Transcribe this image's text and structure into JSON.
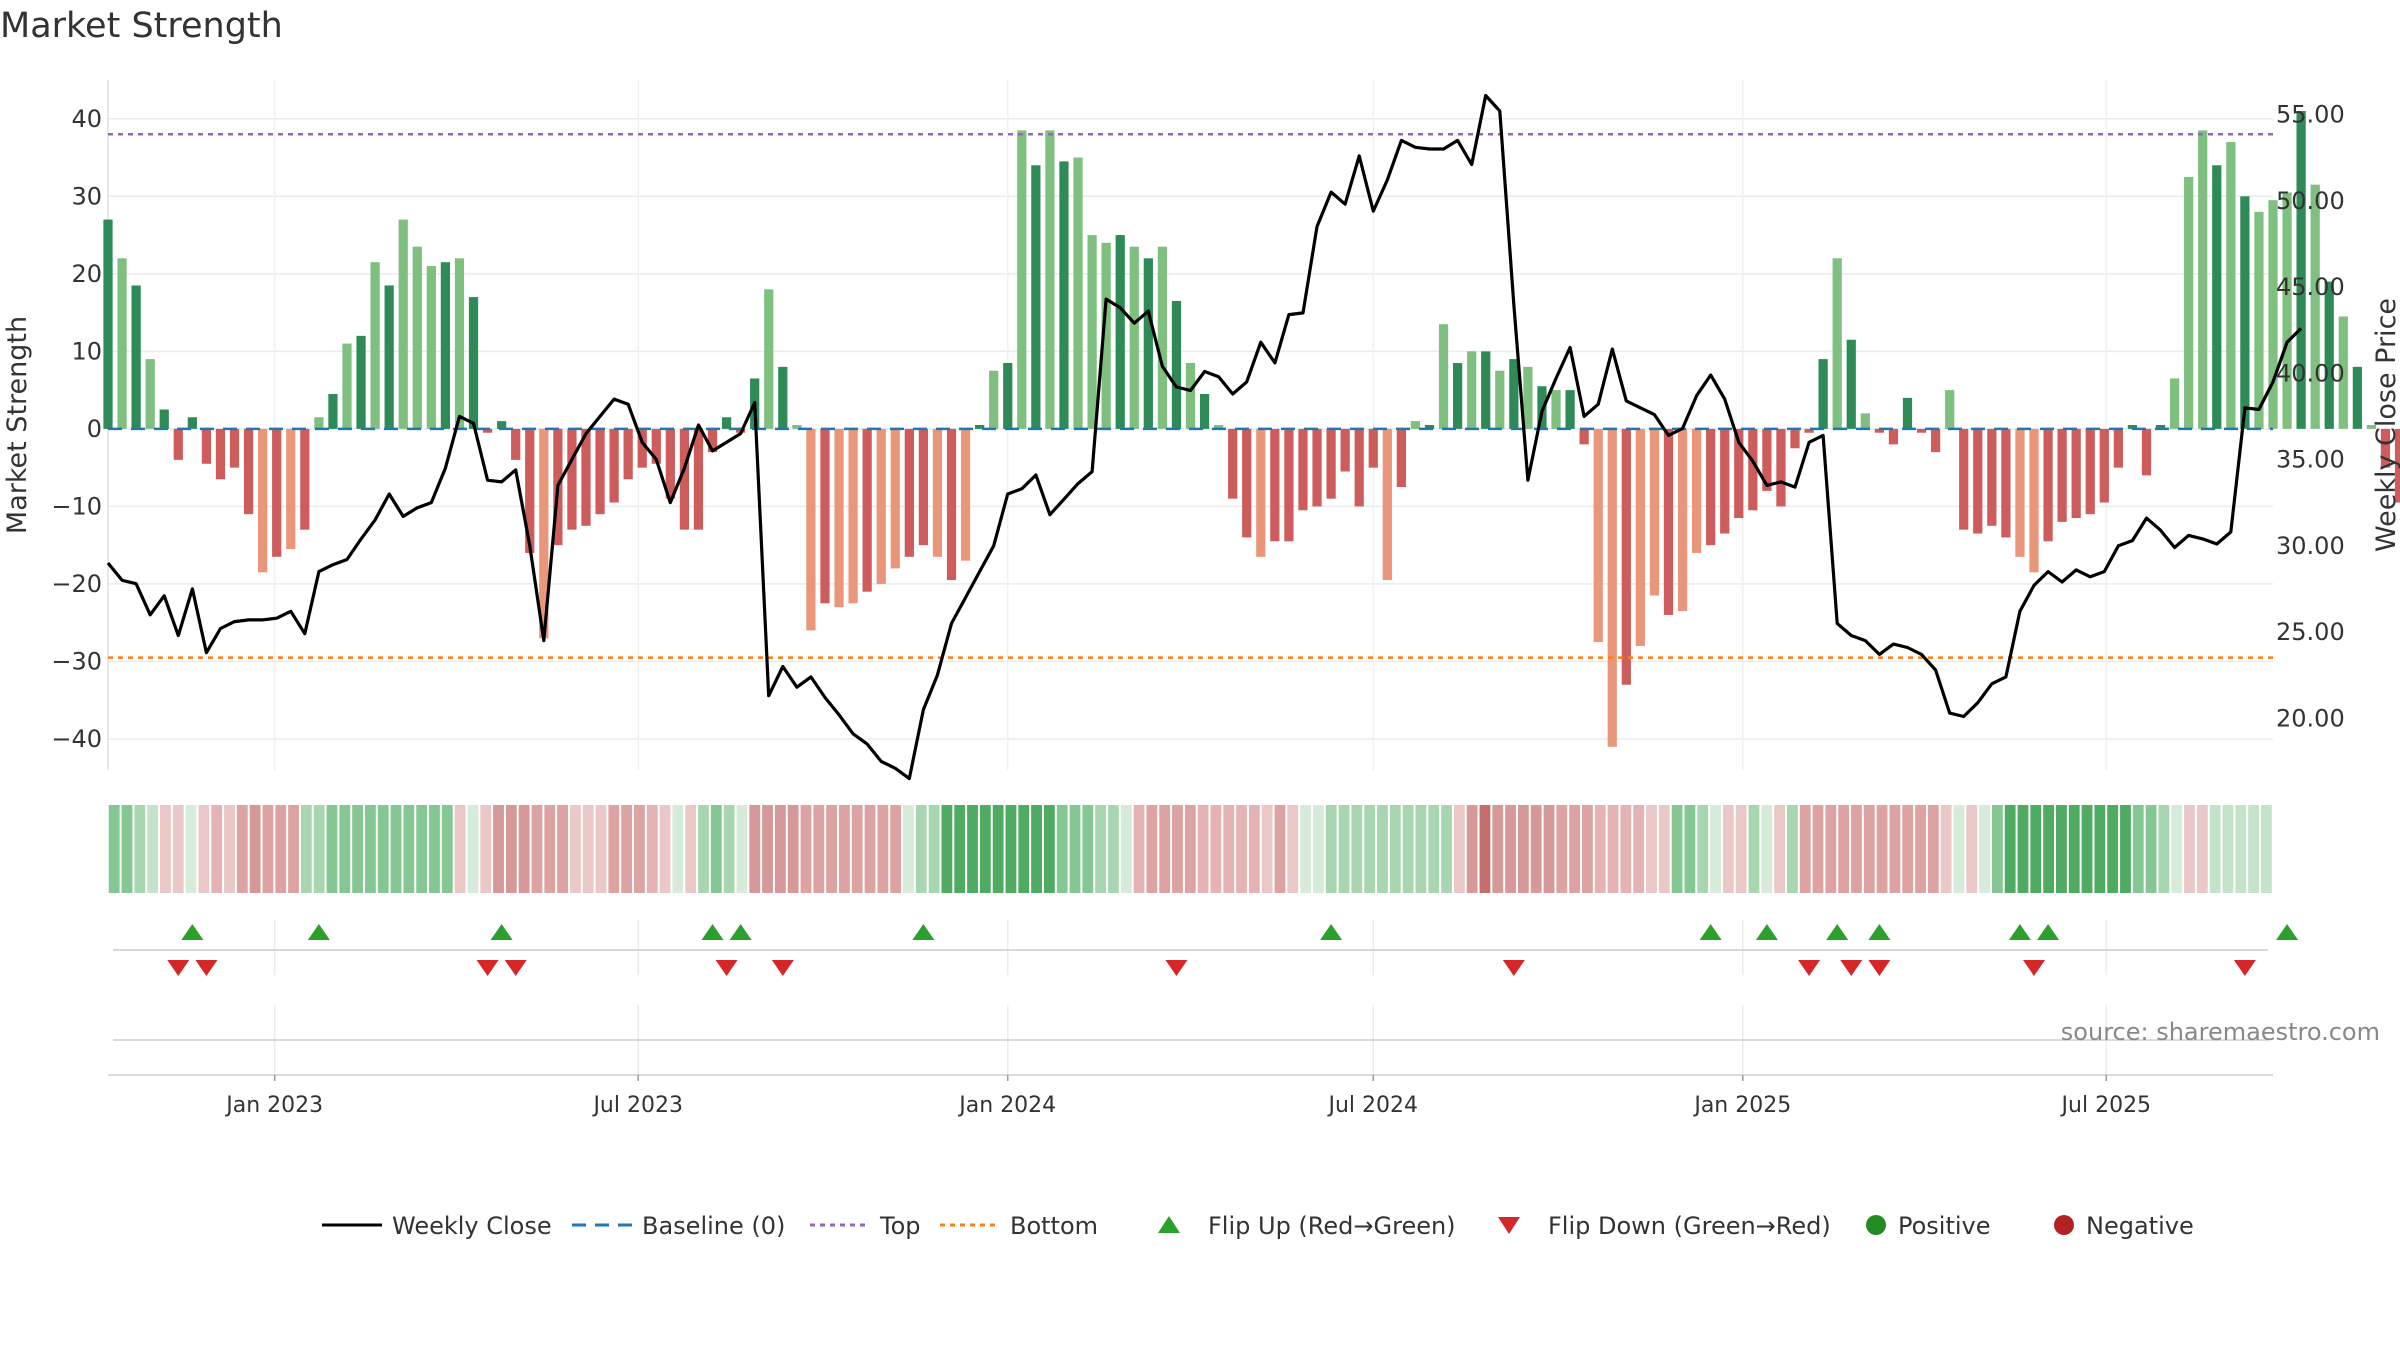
{
  "title": "Market Strength",
  "source": "source: sharemaestro.com",
  "chart_data": {
    "type": "bar",
    "ylabel_left": "Market Strength",
    "ylabel_right": "Weekly Close Price",
    "y_left_range": [
      -44,
      45
    ],
    "y_right_range": [
      17,
      57
    ],
    "y_left_ticks": [
      "40",
      "30",
      "20",
      "10",
      "0",
      "−10",
      "−20",
      "−30",
      "−40"
    ],
    "y_right_ticks": [
      "55.00",
      "50.00",
      "45.00",
      "40.00",
      "35.00",
      "30.00",
      "25.00",
      "20.00"
    ],
    "x_range": [
      "2022-10-10",
      "2025-09-22"
    ],
    "x_ticks": [
      {
        "date": "2023-01-01",
        "label": "Jan 2023"
      },
      {
        "date": "2023-07-01",
        "label": "Jul 2023"
      },
      {
        "date": "2024-01-01",
        "label": "Jan 2024"
      },
      {
        "date": "2024-07-01",
        "label": "Jul 2024"
      },
      {
        "date": "2025-01-01",
        "label": "Jan 2025"
      },
      {
        "date": "2025-07-01",
        "label": "Jul 2025"
      }
    ],
    "top_line": 38,
    "bottom_line": -29.5,
    "baseline": 0,
    "start_date": "2022-10-10",
    "strength": [
      27,
      22,
      18.5,
      9,
      2.5,
      -4,
      1.5,
      -4.5,
      -6.5,
      -5,
      -11,
      -18.5,
      -16.5,
      -15.5,
      -13,
      1.5,
      4.5,
      11,
      12,
      21.5,
      18.5,
      27,
      23.5,
      21,
      21.5,
      22,
      17,
      -0.5,
      1,
      -4,
      -16,
      -27,
      -15,
      -13,
      -12.5,
      -11,
      -9.5,
      -6.5,
      -5,
      -4.5,
      -9,
      -13,
      -13,
      -3,
      1.5,
      -0.5,
      6.5,
      18,
      8,
      0.5,
      -26,
      -22.5,
      -23,
      -22.5,
      -21,
      -20,
      -18,
      -16.5,
      -15,
      -16.5,
      -19.5,
      -17,
      0.5,
      7.5,
      8.5,
      38.5,
      34,
      38.5,
      34.5,
      35,
      25,
      24,
      25,
      23.5,
      22,
      23.5,
      16.5,
      8.5,
      4.5,
      0.5,
      -9,
      -14,
      -16.5,
      -14.5,
      -14.5,
      -10.5,
      -10,
      -9,
      -5.5,
      -10,
      -5,
      -19.5,
      -7.5,
      1,
      0.5,
      13.5,
      8.5,
      10,
      10,
      7.5,
      9,
      8,
      5.5,
      5,
      5,
      -2,
      -27.5,
      -41,
      -33,
      -28,
      -21.5,
      -24,
      -23.5,
      -16,
      -15,
      -13.5,
      -11.5,
      -10.5,
      -8,
      -10,
      -2.5,
      -0.5,
      9,
      22,
      11.5,
      2,
      -0.5,
      -2,
      4,
      -0.5,
      -3,
      5,
      -13,
      -13.5,
      -12.5,
      -14,
      -16.5,
      -18.5,
      -14.5,
      -12,
      -11.5,
      -11,
      -9.5,
      -5,
      0.5,
      -6,
      0.5,
      6.5,
      32.5,
      38.5,
      34,
      37,
      30,
      28,
      29.5,
      30.5,
      41,
      31.5,
      19,
      14.5,
      8,
      0.5,
      -5,
      -9.5,
      3,
      2.5,
      3.5,
      6,
      5.5
    ],
    "weekly_close": [
      29.0,
      28.0,
      27.8,
      26.0,
      27.1,
      24.8,
      27.5,
      23.8,
      25.2,
      25.6,
      25.7,
      25.7,
      25.8,
      26.2,
      24.9,
      28.5,
      28.9,
      29.2,
      30.4,
      31.5,
      33.0,
      31.7,
      32.2,
      32.5,
      34.5,
      37.5,
      37.1,
      33.8,
      33.7,
      34.4,
      30.0,
      24.5,
      33.5,
      35.0,
      36.5,
      37.5,
      38.5,
      38.2,
      36.0,
      35.0,
      32.5,
      34.5,
      37.0,
      35.5,
      36.0,
      36.5,
      38.3,
      21.3,
      23.0,
      21.8,
      22.4,
      21.2,
      20.2,
      19.1,
      18.5,
      17.5,
      17.1,
      16.5,
      20.5,
      22.5,
      25.5,
      27.0,
      28.5,
      30.0,
      33.0,
      33.3,
      34.1,
      31.8,
      32.7,
      33.6,
      34.3,
      44.3,
      43.8,
      42.9,
      43.6,
      40.4,
      39.2,
      39.0,
      40.1,
      39.8,
      38.8,
      39.5,
      41.8,
      40.6,
      43.4,
      43.5,
      48.5,
      50.5,
      49.8,
      52.6,
      49.4,
      51.2,
      53.5,
      53.1,
      53.0,
      53.0,
      53.5,
      52.1,
      56.1,
      55.2,
      44.0,
      33.8,
      37.8,
      39.7,
      41.5,
      37.5,
      38.2,
      41.4,
      38.4,
      38.0,
      37.6,
      36.4,
      36.8,
      38.7,
      39.9,
      38.5,
      36.0,
      34.9,
      33.5,
      33.7,
      33.4,
      36.0,
      36.4,
      25.5,
      24.8,
      24.5,
      23.7,
      24.3,
      24.1,
      23.7,
      22.8,
      20.3,
      20.1,
      20.9,
      22.0,
      22.4,
      26.2,
      27.7,
      28.5,
      27.9,
      28.6,
      28.2,
      28.5,
      30.0,
      30.3,
      31.6,
      30.9,
      29.9,
      30.6,
      30.4,
      30.1,
      30.8,
      38.0,
      37.9,
      39.5,
      41.8,
      42.6
    ],
    "heat_strip": [
      "#85c792",
      "#85c792",
      "#a8d6b1",
      "#c4e3ca",
      "#ebc8c8",
      "#ebc8c8",
      "#d6ebd9",
      "#ebc8c8",
      "#e5b3b3",
      "#ebc8c8",
      "#dda3a3",
      "#d69898",
      "#dda3a3",
      "#dda3a3",
      "#dda3a3",
      "#a8d6b1",
      "#a8d6b1",
      "#85c792",
      "#85c792",
      "#85c792",
      "#85c792",
      "#85c792",
      "#85c792",
      "#85c792",
      "#85c792",
      "#85c792",
      "#85c792",
      "#ebc8c8",
      "#d6ebd9",
      "#ebc8c8",
      "#d69898",
      "#d69898",
      "#d69898",
      "#dda3a3",
      "#dda3a3",
      "#dda3a3",
      "#ebc8c8",
      "#ebc8c8",
      "#ebc8c8",
      "#dda3a3",
      "#dda3a3",
      "#dda3a3",
      "#e5b3b3",
      "#ebc8c8",
      "#d6ebd9",
      "#ebc8c8",
      "#a8d6b1",
      "#85c792",
      "#a8d6b1",
      "#d6ebd9",
      "#d69898",
      "#d69898",
      "#d69898",
      "#d69898",
      "#dda3a3",
      "#dda3a3",
      "#dda3a3",
      "#dda3a3",
      "#dda3a3",
      "#dda3a3",
      "#dda3a3",
      "#dda3a3",
      "#d6ebd9",
      "#a8d6b1",
      "#a8d6b1",
      "#4faa62",
      "#4faa62",
      "#4faa62",
      "#4faa62",
      "#4faa62",
      "#4faa62",
      "#4faa62",
      "#4faa62",
      "#4faa62",
      "#85c792",
      "#85c792",
      "#85c792",
      "#a8d6b1",
      "#a8d6b1",
      "#d6ebd9",
      "#e5b3b3",
      "#dda3a3",
      "#dda3a3",
      "#dda3a3",
      "#dda3a3",
      "#e5b3b3",
      "#e5b3b3",
      "#e5b3b3",
      "#e5b3b3",
      "#e5b3b3",
      "#ebc8c8",
      "#dda3a3",
      "#ebc8c8",
      "#d6ebd9",
      "#d6ebd9",
      "#a8d6b1",
      "#a8d6b1",
      "#a8d6b1",
      "#a8d6b1",
      "#a8d6b1",
      "#a8d6b1",
      "#a8d6b1",
      "#a8d6b1",
      "#a8d6b1",
      "#a8d6b1",
      "#ebc8c8",
      "#d69898",
      "#c56e6e",
      "#d69898",
      "#d69898",
      "#d69898",
      "#d69898",
      "#d69898",
      "#dda3a3",
      "#dda3a3",
      "#dda3a3",
      "#e5b3b3",
      "#e5b3b3",
      "#e5b3b3",
      "#e5b3b3",
      "#ebc8c8",
      "#ebc8c8",
      "#85c792",
      "#85c792",
      "#a8d6b1",
      "#d6ebd9",
      "#ebc8c8",
      "#ebc8c8",
      "#a8d6b1",
      "#d6ebd9",
      "#ebc8c8",
      "#a8d6b1",
      "#dda3a3",
      "#dda3a3",
      "#dda3a3",
      "#dda3a3",
      "#dda3a3",
      "#dda3a3",
      "#dda3a3",
      "#dda3a3",
      "#dda3a3",
      "#dda3a3",
      "#dda3a3",
      "#ebc8c8",
      "#d6ebd9",
      "#ebc8c8",
      "#d6ebd9",
      "#85c792",
      "#4faa62",
      "#4faa62",
      "#4faa62",
      "#4faa62",
      "#4faa62",
      "#4faa62",
      "#4faa62",
      "#4faa62",
      "#4faa62",
      "#4faa62",
      "#85c792",
      "#85c792",
      "#a8d6b1",
      "#d6ebd9",
      "#ebc8c8",
      "#ebc8c8",
      "#c4e3ca",
      "#c4e3ca",
      "#c4e3ca",
      "#c4e3ca",
      "#c4e3ca"
    ],
    "flip_up_indices": [
      6,
      15,
      28,
      43,
      45,
      58,
      87,
      114,
      118,
      123,
      126,
      136,
      138,
      155
    ],
    "flip_down_indices": [
      5,
      7,
      27,
      29,
      44,
      48,
      76,
      100,
      121,
      124,
      126,
      137,
      152
    ],
    "colors": {
      "pos_dark": "#2e8b57",
      "pos_light": "#7fbf7f",
      "neg_dark": "#cd5c5c",
      "neg_light": "#e9967a",
      "close": "#000000",
      "baseline": "#1f77b4",
      "top": "#9467bd",
      "bottom": "#ff7f0e",
      "flip_up": "#2ca02c",
      "flip_down": "#d62728",
      "positive": "#228b22",
      "negative": "#b22222"
    },
    "legend": [
      {
        "key": "close",
        "label": "Weekly Close",
        "marker": "line-solid"
      },
      {
        "key": "baseline",
        "label": "Baseline (0)",
        "marker": "line-dash"
      },
      {
        "key": "top",
        "label": "Top",
        "marker": "line-dot"
      },
      {
        "key": "bottom",
        "label": "Bottom",
        "marker": "line-dot"
      },
      {
        "key": "flip_up",
        "label": "Flip Up (Red→Green)",
        "marker": "triangle-up"
      },
      {
        "key": "flip_down",
        "label": "Flip Down (Green→Red)",
        "marker": "triangle-down"
      },
      {
        "key": "positive",
        "label": "Positive",
        "marker": "circle"
      },
      {
        "key": "negative",
        "label": "Negative",
        "marker": "circle"
      }
    ]
  }
}
